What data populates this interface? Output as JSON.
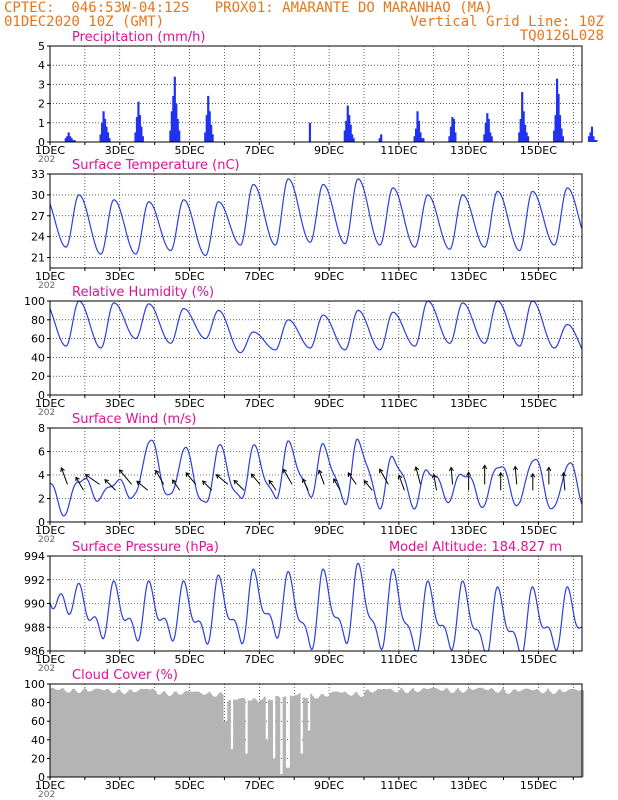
{
  "header": {
    "line1": "CPTEC:  046:53W-04:12S   PROX01: AMARANTE DO MARANHAO (MA)",
    "line2_left": "01DEC2020 10Z (GMT)",
    "line2_right": "Vertical Grid Line: 10Z",
    "line3_right": "TQ0126L028"
  },
  "colors": {
    "header": "#e8751a",
    "title": "#e0109a",
    "series": "#2b3fe0",
    "bar": "#2032f0",
    "cloud": "#b4b4b4"
  },
  "x_ticks": [
    "1DEC",
    "3DEC",
    "5DEC",
    "7DEC",
    "9DEC",
    "11DEC",
    "13DEC",
    "15DEC"
  ],
  "x_stub": "202",
  "chart_data": [
    {
      "id": "precip",
      "type": "bar",
      "title": "Precipitation (mm/h)",
      "extra": "",
      "ylim": [
        0,
        5
      ],
      "yticks": [
        0,
        1,
        2,
        3,
        4,
        5
      ],
      "day_values": [
        [
          0.2,
          0.3,
          0.5,
          0.3,
          0.2,
          0.1,
          0.1
        ],
        [
          0.4,
          1.0,
          1.6,
          1.2,
          0.8,
          0.5,
          0.2
        ],
        [
          0.5,
          1.3,
          2.1,
          1.4,
          0.8,
          0.3
        ],
        [
          0.6,
          1.6,
          2.4,
          3.4,
          2.0,
          1.2,
          0.6
        ],
        [
          0.5,
          1.4,
          2.4,
          1.6,
          0.9,
          0.4
        ],
        [],
        [],
        [
          1.0
        ],
        [
          0.6,
          1.1,
          1.9,
          1.4,
          0.9,
          0.4,
          0.2
        ],
        [
          0.2,
          0.4
        ],
        [
          0.3,
          0.7,
          1.6,
          1.1,
          0.5,
          0.2,
          0.2
        ],
        [
          0.3,
          0.8,
          1.3,
          1.2,
          0.5
        ],
        [
          0.4,
          1.0,
          1.5,
          1.2,
          0.5,
          0.3
        ],
        [
          0.5,
          1.2,
          2.6,
          1.6,
          0.9,
          0.5,
          0.3
        ],
        [
          0.6,
          1.4,
          3.3,
          2.5,
          1.4,
          0.7,
          0.3
        ],
        [
          0.3,
          0.5,
          0.8,
          0.3,
          0.1,
          0.1
        ],
        [],
        []
      ]
    },
    {
      "id": "temp",
      "type": "line",
      "title": "Surface Temperature (nC)",
      "extra": "",
      "ylim": [
        19.5,
        33
      ],
      "yticks": [
        21,
        24,
        27,
        30,
        33
      ],
      "min": [
        22.5,
        21.5,
        21.5,
        22.0,
        21.3,
        22.8,
        22.8,
        23.2,
        23.0,
        22.8,
        22.5,
        22.2,
        22.5,
        22.0,
        22.8,
        23.0
      ],
      "max": [
        30.0,
        29.3,
        29.0,
        29.3,
        29.0,
        31.5,
        32.3,
        31.5,
        32.3,
        31.0,
        30.0,
        30.0,
        30.5,
        30.5,
        31.0,
        31.8
      ]
    },
    {
      "id": "rh",
      "type": "line",
      "title": "Relative Humidity (%)",
      "extra": "",
      "ylim": [
        0,
        100
      ],
      "yticks": [
        0,
        20,
        40,
        60,
        80,
        100
      ],
      "min": [
        52,
        50,
        60,
        55,
        60,
        45,
        48,
        50,
        48,
        48,
        52,
        55,
        55,
        52,
        50,
        40
      ],
      "max": [
        100,
        98,
        97,
        92,
        90,
        67,
        80,
        85,
        90,
        88,
        100,
        98,
        100,
        100,
        75,
        60
      ]
    },
    {
      "id": "wind",
      "type": "line",
      "title": "Surface Wind (m/s)",
      "extra": "",
      "ylim": [
        0,
        8
      ],
      "yticks": [
        0,
        2,
        4,
        6,
        8
      ],
      "min": [
        0.8,
        2.0,
        2.2,
        2.0,
        1.3,
        1.8,
        2.0,
        2.3,
        1.8,
        1.5,
        1.5,
        2.0,
        1.5,
        1.5,
        1.0,
        0.8
      ],
      "max": [
        3.8,
        3.5,
        7.0,
        6.2,
        6.3,
        6.2,
        6.5,
        6.3,
        6.8,
        5.5,
        4.5,
        4.3,
        5.0,
        5.5,
        5.0,
        5.0
      ],
      "arrow_dirs": [
        200,
        210,
        235,
        225,
        220,
        230,
        210,
        215,
        220,
        225,
        230,
        225,
        220,
        215,
        210,
        205,
        200,
        210,
        215,
        220,
        210,
        200,
        195,
        190,
        185,
        180,
        180,
        180,
        185,
        180,
        180,
        185
      ],
      "arrow_speeds": [
        3.5,
        3.0,
        3.4,
        3.0,
        3.8,
        2.8,
        3.2,
        2.5,
        3.0,
        2.6,
        3.0,
        2.8,
        2.7,
        2.4,
        3.5,
        2.5,
        3.0,
        2.6,
        2.8,
        2.5,
        3.5,
        3.2,
        3.6,
        3.2,
        3.4,
        3.6,
        3.8,
        3.5,
        3.6,
        3.3,
        3.4,
        3.5
      ]
    },
    {
      "id": "pres",
      "type": "line",
      "title": "Surface Pressure (hPa)",
      "extra": "Model Altitude: 184.827 m",
      "ylim": [
        986,
        994
      ],
      "yticks": [
        986,
        988,
        990,
        992,
        994
      ],
      "min": [
        989.8,
        987.5,
        987.3,
        987.3,
        987.0,
        987.0,
        987.5,
        986.5,
        987.0,
        986.5,
        986.2,
        986.5,
        986.0,
        986.0,
        986.5,
        986.5
      ],
      "max": [
        990.8,
        991.0,
        991.0,
        991.0,
        991.5,
        992.0,
        991.8,
        992.0,
        992.5,
        992.0,
        991.0,
        991.0,
        990.5,
        990.5,
        990.5,
        989.5
      ]
    },
    {
      "id": "cloud",
      "type": "area",
      "title": "Cloud Cover (%)",
      "extra": "",
      "ylim": [
        0,
        100
      ],
      "yticks": [
        0,
        20,
        40,
        60,
        80,
        100
      ],
      "base": [
        96,
        95,
        95,
        93,
        92,
        85,
        88,
        90,
        92,
        95,
        96,
        96,
        96,
        95,
        95,
        94
      ],
      "dips": [
        [
          5.2,
          30
        ],
        [
          5.6,
          25
        ],
        [
          6.2,
          40
        ],
        [
          6.6,
          3
        ],
        [
          6.8,
          10
        ],
        [
          7.2,
          25
        ],
        [
          7.4,
          50
        ],
        [
          5.0,
          60
        ],
        [
          6.4,
          20
        ]
      ]
    }
  ]
}
